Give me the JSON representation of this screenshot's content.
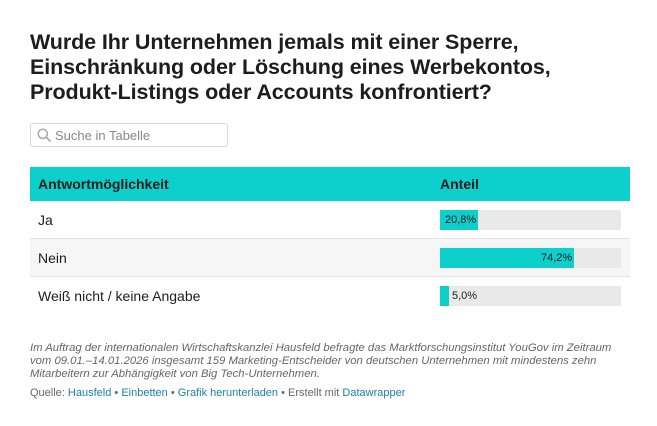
{
  "title": "Wurde Ihr Unternehmen jemals mit einer Sperre, Einschränkung oder Löschung eines Werbekontos, Produkt-Listings oder Accounts konfrontiert?",
  "search": {
    "placeholder": "Suche in Tabelle",
    "icon": "search-icon"
  },
  "table": {
    "headers": [
      "Antwortmöglichkeit",
      "Anteil"
    ],
    "rows": [
      {
        "label": "Ja",
        "value": 20.8,
        "value_label": "20,8%"
      },
      {
        "label": "Nein",
        "value": 74.2,
        "value_label": "74,2%"
      },
      {
        "label": "Weiß nicht / keine Angabe",
        "value": 5.0,
        "value_label": "5,0%"
      }
    ]
  },
  "chart_data": {
    "type": "bar",
    "title": "Wurde Ihr Unternehmen jemals mit einer Sperre, Einschränkung oder Löschung eines Werbekontos, Produkt-Listings oder Accounts konfrontiert?",
    "categories": [
      "Ja",
      "Nein",
      "Weiß nicht / keine Angabe"
    ],
    "values": [
      20.8,
      74.2,
      5.0
    ],
    "value_labels": [
      "20,8%",
      "74,2%",
      "5,0%"
    ],
    "xlabel": "Antwortmöglichkeit",
    "ylabel": "Anteil",
    "ylim": [
      0,
      100
    ],
    "bar_color": "#0dcfcb",
    "track_color": "#e9e9e9"
  },
  "notes": "Im Auftrag der internationalen Wirtschaftskanzlei Hausfeld befragte das Marktforschungsinstitut YouGov im Zeitraum vom 09.01.–14.01.2026 insgesamt 159 Marketing-Entscheider von deutschen Unternehmen mit mindestens zehn Mitarbeitern zur Abhängigkeit von Big Tech-Unternehmen.",
  "footer": {
    "source_prefix": "Quelle: ",
    "source": "Hausfeld",
    "sep1": " • ",
    "embed": "Einbetten",
    "sep2": " • ",
    "download": "Grafik herunterladen",
    "sep3": " • Erstellt mit ",
    "tool": "Datawrapper"
  },
  "colors": {
    "accent": "#0dcfcb",
    "link": "#1d81a2",
    "text": "#1d1d1d",
    "muted": "#666666"
  }
}
